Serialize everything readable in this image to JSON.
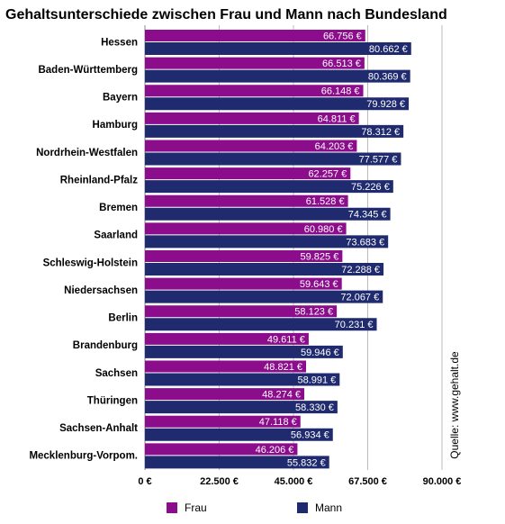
{
  "chart_data": {
    "type": "hbar",
    "title": "Gehaltsunterschiede zwischen Frau und Mann nach Bundesland",
    "categories": [
      "Hessen",
      "Baden-Württemberg",
      "Bayern",
      "Hamburg",
      "Nordrhein-Westfalen",
      "Rheinland-Pfalz",
      "Bremen",
      "Saarland",
      "Schleswig-Holstein",
      "Niedersachsen",
      "Berlin",
      "Brandenburg",
      "Sachsen",
      "Thüringen",
      "Sachsen-Anhalt",
      "Mecklenburg-Vorpom."
    ],
    "series": [
      {
        "name": "Frau",
        "color": "#8b0d8c",
        "values": [
          66756,
          66513,
          66148,
          64811,
          64203,
          62257,
          61528,
          60980,
          59825,
          59643,
          58123,
          49611,
          48821,
          48274,
          47118,
          46206
        ],
        "value_labels": [
          "66.756 €",
          "66.513 €",
          "66.148 €",
          "64.811 €",
          "64.203 €",
          "62.257 €",
          "61.528 €",
          "60.980 €",
          "59.825 €",
          "59.643 €",
          "58.123 €",
          "49.611 €",
          "48.821 €",
          "48.274 €",
          "47.118 €",
          "46.206 €"
        ]
      },
      {
        "name": "Mann",
        "color": "#1f2b6e",
        "values": [
          80662,
          80369,
          79928,
          78312,
          77577,
          75226,
          74345,
          73683,
          72288,
          72067,
          70231,
          59946,
          58991,
          58330,
          56934,
          55832
        ],
        "value_labels": [
          "80.662 €",
          "80.369 €",
          "79.928 €",
          "78.312 €",
          "77.577 €",
          "75.226 €",
          "74.345 €",
          "73.683 €",
          "72.288 €",
          "72.067 €",
          "70.231 €",
          "59.946 €",
          "58.991 €",
          "58.330 €",
          "56.934 €",
          "55.832 €"
        ]
      }
    ],
    "xlim": [
      0,
      90000
    ],
    "xticks": [
      {
        "value": 0,
        "label": "0 €"
      },
      {
        "value": 22500,
        "label": "22.500 €"
      },
      {
        "value": 45000,
        "label": "45.000 €"
      },
      {
        "value": 67500,
        "label": "67.500 €"
      },
      {
        "value": 90000,
        "label": "90.000 €"
      }
    ],
    "grid": true,
    "source": "Quelle: www.gehalt.de"
  }
}
